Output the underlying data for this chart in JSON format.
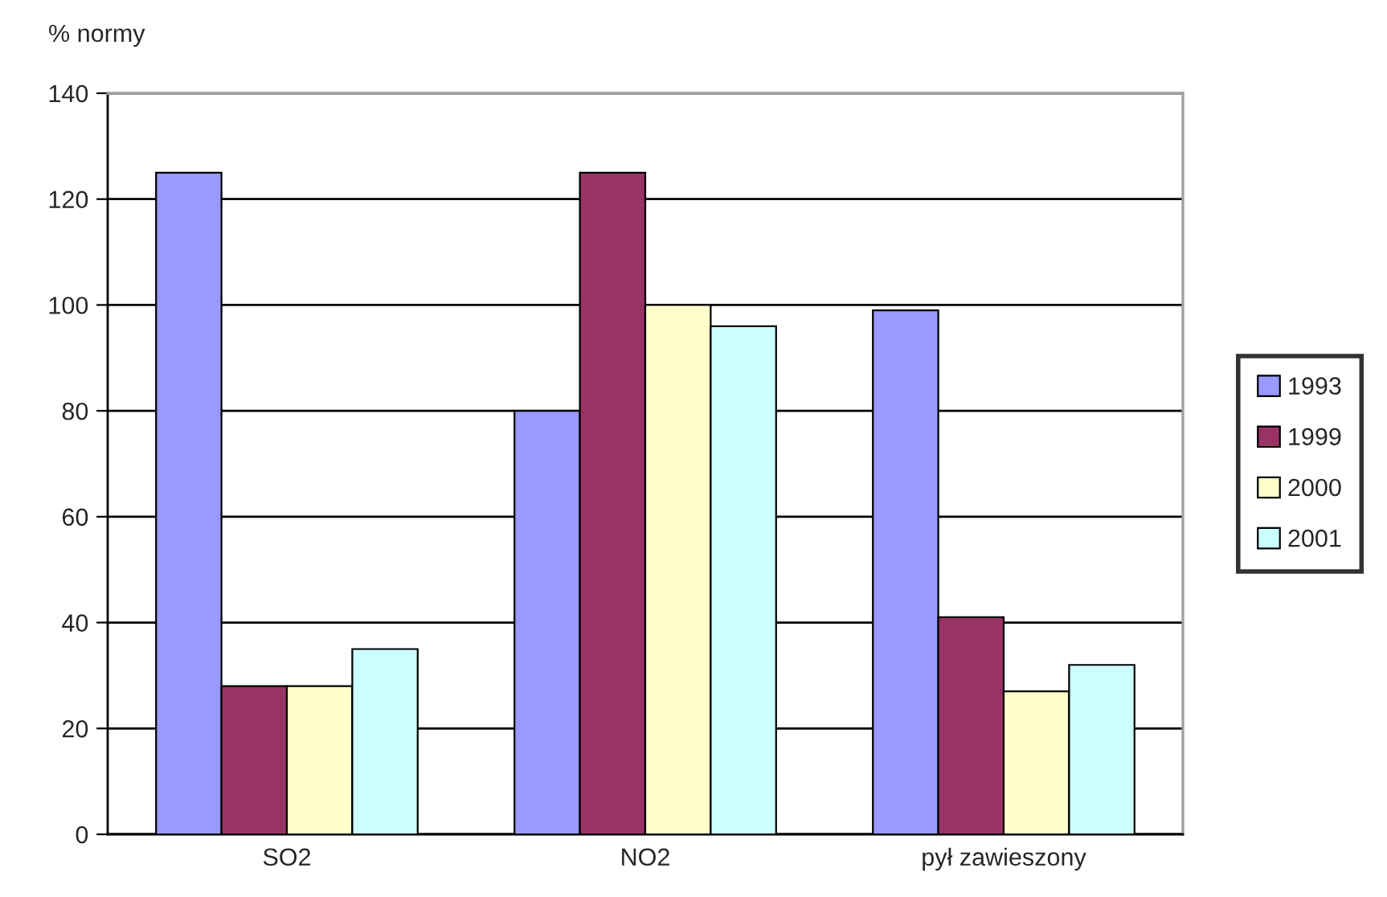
{
  "chart_data": {
    "type": "bar",
    "ylabel": "% normy",
    "categories": [
      "SO2",
      "NO2",
      "pył zawieszony"
    ],
    "series": [
      {
        "name": "1993",
        "color": "#9999ff",
        "values": [
          125,
          80,
          99
        ]
      },
      {
        "name": "1999",
        "color": "#993366",
        "values": [
          28,
          125,
          41
        ]
      },
      {
        "name": "2000",
        "color": "#ffffcc",
        "values": [
          28,
          100,
          27
        ]
      },
      {
        "name": "2001",
        "color": "#ccffff",
        "values": [
          35,
          96,
          32
        ]
      }
    ],
    "ylim": [
      0,
      140
    ],
    "yticks": [
      0,
      20,
      40,
      60,
      80,
      100,
      120,
      140
    ],
    "grid": "y",
    "legend": "right"
  }
}
